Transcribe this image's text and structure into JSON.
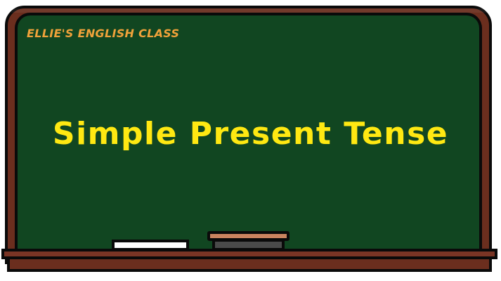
{
  "board": {
    "header": "ELLIE'S ENGLISH CLASS",
    "title": "Simple Present Tense"
  },
  "colors": {
    "board_green": "#114621",
    "frame_brown": "#6b2e1e",
    "header_orange": "#f0a23a",
    "title_yellow": "#ffe812",
    "chalk_white": "#ffffff",
    "eraser_felt": "#4a4a4a",
    "eraser_wood": "#c9835f"
  },
  "icons": {
    "chalk": "chalk-icon",
    "eraser": "eraser-icon"
  }
}
